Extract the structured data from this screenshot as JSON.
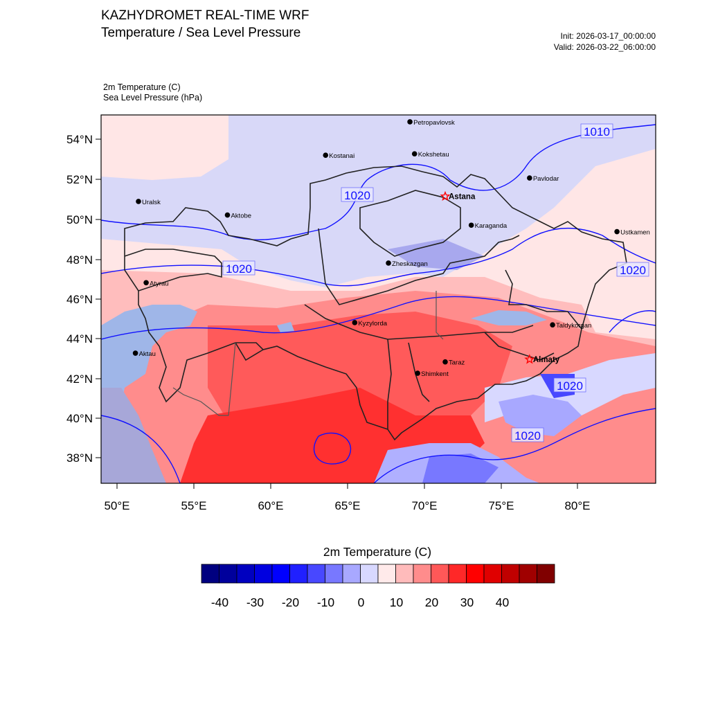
{
  "title": {
    "line1": "KAZHYDROMET REAL-TIME WRF",
    "line2": "Temperature / Sea Level Pressure"
  },
  "run": {
    "init": "Init: 2026-03-17_00:00:00",
    "valid": "Valid: 2026-03-22_06:00:00"
  },
  "variables": {
    "temperature": "2m Temperature   (C)",
    "pressure": "Sea Level Pressure   (hPa)"
  },
  "map": {
    "lat_labels": [
      "54°N",
      "52°N",
      "50°N",
      "48°N",
      "46°N",
      "44°N",
      "42°N",
      "40°N",
      "38°N"
    ],
    "lon_labels": [
      "50°E",
      "55°E",
      "60°E",
      "65°E",
      "70°E",
      "75°E",
      "80°E"
    ],
    "cities": [
      {
        "name": "Petropavlovsk",
        "lon": 69.1,
        "lat": 54.9,
        "capital": false
      },
      {
        "name": "Kostanai",
        "lon": 63.6,
        "lat": 53.2,
        "capital": false
      },
      {
        "name": "Kokshetau",
        "lon": 69.4,
        "lat": 53.3,
        "capital": false
      },
      {
        "name": "Pavlodar",
        "lon": 76.9,
        "lat": 52.3,
        "capital": false
      },
      {
        "name": "Uralsk",
        "lon": 51.4,
        "lat": 51.2,
        "capital": false
      },
      {
        "name": "Astana",
        "lon": 71.4,
        "lat": 51.2,
        "capital": true
      },
      {
        "name": "Aktobe",
        "lon": 57.2,
        "lat": 50.3,
        "capital": false
      },
      {
        "name": "Ustkamen",
        "lon": 82.6,
        "lat": 49.9,
        "capital": false
      },
      {
        "name": "Karaganda",
        "lon": 73.1,
        "lat": 49.8,
        "capital": false
      },
      {
        "name": "Atyrau",
        "lon": 51.9,
        "lat": 47.1,
        "capital": false
      },
      {
        "name": "Zheskazgan",
        "lon": 67.7,
        "lat": 47.8,
        "capital": false
      },
      {
        "name": "Taldykorgan",
        "lon": 78.4,
        "lat": 45.0,
        "capital": false
      },
      {
        "name": "Aktau",
        "lon": 51.2,
        "lat": 43.6,
        "capital": false
      },
      {
        "name": "Kyzylorda",
        "lon": 65.5,
        "lat": 44.8,
        "capital": false
      },
      {
        "name": "Almaty",
        "lon": 76.9,
        "lat": 43.2,
        "capital": true
      },
      {
        "name": "Taraz",
        "lon": 71.4,
        "lat": 42.9,
        "capital": false
      },
      {
        "name": "Shimkent",
        "lon": 69.6,
        "lat": 42.3,
        "capital": false
      }
    ],
    "isobar_labels": [
      "1010",
      "1020",
      "1020",
      "1020",
      "1020",
      "1020"
    ]
  },
  "colorbar": {
    "title": "2m Temperature  (C)",
    "labels": [
      "-40",
      "-30",
      "-20",
      "-10",
      "0",
      "10",
      "20",
      "30",
      "40"
    ],
    "colors": [
      "#000080",
      "#00009c",
      "#0000c0",
      "#0000e0",
      "#0000ff",
      "#2020ff",
      "#4848ff",
      "#7878ff",
      "#a8a8ff",
      "#d8d8ff",
      "#ffeaea",
      "#ffbbbb",
      "#ff8c8c",
      "#ff5858",
      "#ff2828",
      "#ff0000",
      "#e00000",
      "#c00000",
      "#a00000",
      "#800000"
    ]
  }
}
